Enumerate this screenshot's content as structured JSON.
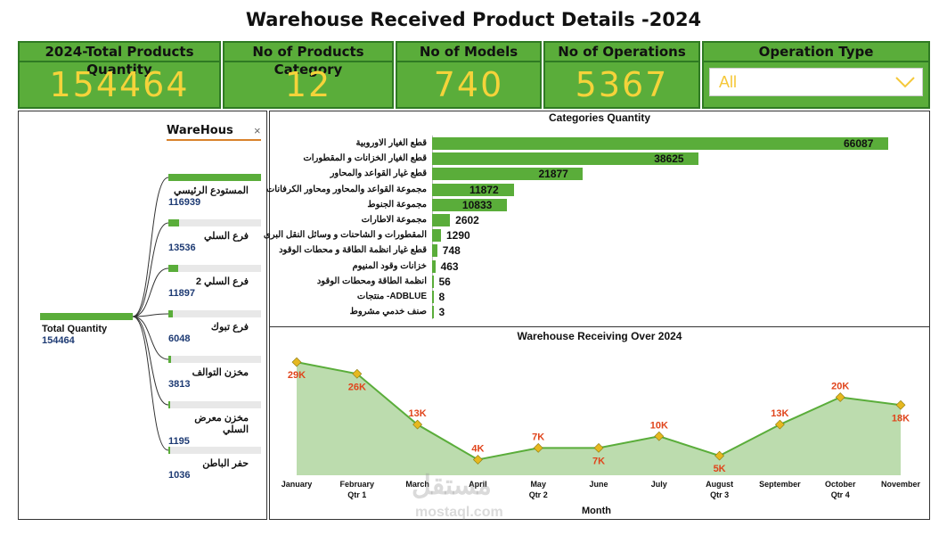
{
  "title": "Warehouse Received Product Details -2024",
  "kpis": {
    "total_qty": {
      "label": "2024-Total Products Quantity",
      "value": "154464"
    },
    "categories": {
      "label": "No of Products Category",
      "value": "12"
    },
    "models": {
      "label": "No of Models",
      "value": "740"
    },
    "operations": {
      "label": "No of Operations",
      "value": "5367"
    },
    "operation_type": {
      "label": "Operation Type",
      "value": "All"
    }
  },
  "tree": {
    "header": "WareHous",
    "close": "×",
    "root_label": "Total Quantity",
    "root_value": "154464",
    "nodes": [
      {
        "name": "المستودع الرئيسي",
        "value": "116939",
        "fraction": 1.0
      },
      {
        "name": "فرع السلي",
        "value": "13536",
        "fraction": 0.116
      },
      {
        "name": "فرع السلي 2",
        "value": "11897",
        "fraction": 0.102
      },
      {
        "name": "فرع تبوك",
        "value": "6048",
        "fraction": 0.052
      },
      {
        "name": "مخزن التوالف",
        "value": "3813",
        "fraction": 0.033
      },
      {
        "name": "مخزن معرض السلي",
        "value": "1195",
        "fraction": 0.01
      },
      {
        "name": "حفر الباطن",
        "value": "1036",
        "fraction": 0.009
      }
    ]
  },
  "categories_chart": {
    "title": "Categories Quantity",
    "chart_data": {
      "type": "bar",
      "categories": [
        "قطع الغيار الاوروبية",
        "قطع الغيار الخزانات و المقطورات",
        "قطع غيار القواعد والمحاور",
        "مجموعة القواعد والمحاور ومحاور الكرفانات",
        "مجموعة الجنوط",
        "مجموعة الاطارات",
        "المقطورات و الشاحنات و وسائل النقل البرى",
        "قطع غيار انظمة الطاقة و محطات الوقود",
        "خزانات وقود المنيوم",
        "انظمة الطاقة ومحطات الوقود",
        "ADBLUE- منتجات",
        "صنف خدمي مشروط"
      ],
      "values": [
        66087,
        38625,
        21877,
        11872,
        10833,
        2602,
        1290,
        748,
        463,
        56,
        8,
        3
      ],
      "labels": [
        "66087",
        "38625",
        "21877",
        "11872",
        "10833",
        "2602",
        "1290",
        "748",
        "463",
        "56",
        "8",
        "3"
      ],
      "xlim": [
        0,
        66087
      ]
    }
  },
  "trend_chart": {
    "title": "Warehouse Receiving Over 2024",
    "xlabel": "Month",
    "chart_data": {
      "type": "area",
      "categories": [
        "January",
        "February",
        "March",
        "April",
        "May",
        "June",
        "July",
        "August",
        "September",
        "October",
        "November"
      ],
      "values": [
        29,
        26,
        13,
        4,
        7,
        7,
        10,
        5,
        13,
        20,
        18
      ],
      "labels": [
        "29K",
        "26K",
        "13K",
        "4K",
        "7K",
        "7K",
        "10K",
        "5K",
        "13K",
        "20K",
        "18K"
      ],
      "quarters": [
        {
          "label": "Qtr 1",
          "month_index": 1
        },
        {
          "label": "Qtr 2",
          "month_index": 4
        },
        {
          "label": "Qtr 3",
          "month_index": 7
        },
        {
          "label": "Qtr 4",
          "month_index": 9
        }
      ],
      "ylim": [
        0,
        32
      ]
    }
  },
  "watermark": {
    "main": "مستقل",
    "sub": "mostaql.com"
  },
  "colors": {
    "accent": "#5aad3a",
    "kpi_value": "#f5d33a",
    "data_label": "#e0441b",
    "marker": "#e6b820",
    "area": "#bcdcae"
  }
}
